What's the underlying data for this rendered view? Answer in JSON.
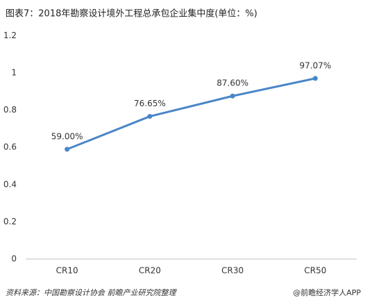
{
  "chart_data": {
    "type": "line",
    "title": "图表7：2018年勘察设计境外工程总承包企业集中度(单位：%)",
    "categories": [
      "CR10",
      "CR20",
      "CR30",
      "CR50"
    ],
    "values": [
      0.59,
      0.7665,
      0.876,
      0.9707
    ],
    "value_labels": [
      "59.00%",
      "76.65%",
      "87.60%",
      "97.07%"
    ],
    "color": "#4a86c8",
    "ylim": [
      0,
      1.2
    ],
    "yticks": [
      0,
      0.2,
      0.4,
      0.6,
      0.8,
      1,
      1.2
    ],
    "source": "资料来源：中国勘察设计协会 前瞻产业研究院整理",
    "credit": "@前瞻经济学人APP"
  }
}
